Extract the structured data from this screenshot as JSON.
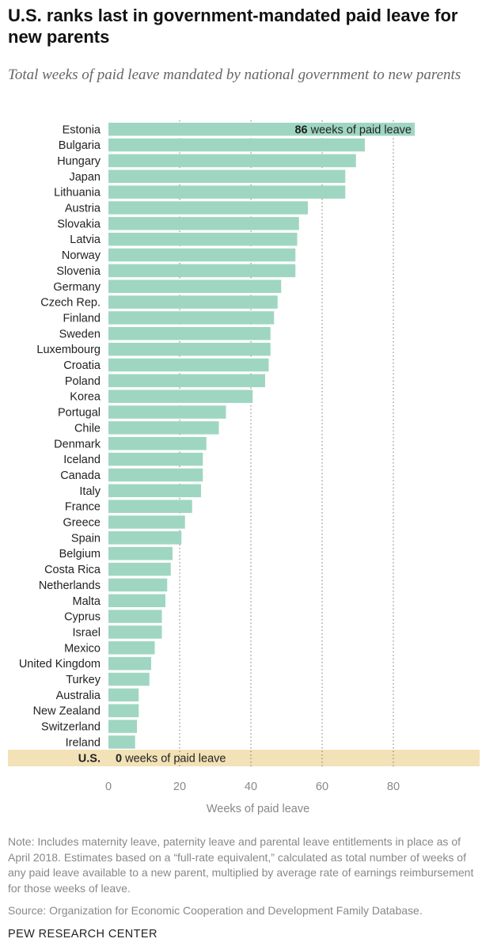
{
  "header": {
    "title": "U.S. ranks last in government-mandated paid leave for new parents",
    "subtitle": "Total weeks of paid leave mandated by national government to new parents"
  },
  "footer": {
    "note": "Note: Includes maternity leave, paternity leave and parental leave entitlements in place as of April 2018. Estimates based on a “full-rate equivalent,” calculated as total number of weeks of any paid leave available to a new parent, multiplied by average rate of earnings reimbursement for those weeks of leave.",
    "source": "Source: Organization for Economic Cooperation and Development Family Database.",
    "brand": "PEW RESEARCH CENTER"
  },
  "colors": {
    "bar": "#9fd6c2",
    "highlight_band": "#f3e2b7",
    "gridline": "#777777",
    "axis_text": "#888888"
  },
  "chart_data": {
    "type": "bar",
    "orientation": "horizontal",
    "xlabel": "Weeks of paid leave",
    "xlim": [
      0,
      86
    ],
    "xticks": [
      0,
      20,
      40,
      60,
      80
    ],
    "grid": "vertical dotted lines at x ticks",
    "categories": [
      "Estonia",
      "Bulgaria",
      "Hungary",
      "Japan",
      "Lithuania",
      "Austria",
      "Slovakia",
      "Latvia",
      "Norway",
      "Slovenia",
      "Germany",
      "Czech Rep.",
      "Finland",
      "Sweden",
      "Luxembourg",
      "Croatia",
      "Poland",
      "Korea",
      "Portugal",
      "Chile",
      "Denmark",
      "Iceland",
      "Canada",
      "Italy",
      "France",
      "Greece",
      "Spain",
      "Belgium",
      "Costa Rica",
      "Netherlands",
      "Malta",
      "Cyprus",
      "Israel",
      "Mexico",
      "United Kingdom",
      "Turkey",
      "Australia",
      "New Zealand",
      "Switzerland",
      "Ireland",
      "U.S."
    ],
    "values": [
      86,
      72,
      69.5,
      66.5,
      66.5,
      56,
      53.5,
      53,
      52.5,
      52.5,
      48.5,
      47.5,
      46.5,
      45.5,
      45.5,
      45,
      44,
      40.5,
      33,
      31,
      27.5,
      26.5,
      26.5,
      26,
      23.5,
      21.5,
      20.5,
      18,
      17.5,
      16.5,
      16,
      15,
      15,
      13,
      12,
      11.5,
      8.5,
      8.5,
      8,
      7.5,
      0
    ],
    "highlight": "U.S.",
    "annotations": [
      {
        "category": "Estonia",
        "value_text": "86",
        "text": " weeks of paid leave"
      },
      {
        "category": "U.S.",
        "value_text": "0",
        "text": " weeks of paid leave"
      }
    ]
  }
}
